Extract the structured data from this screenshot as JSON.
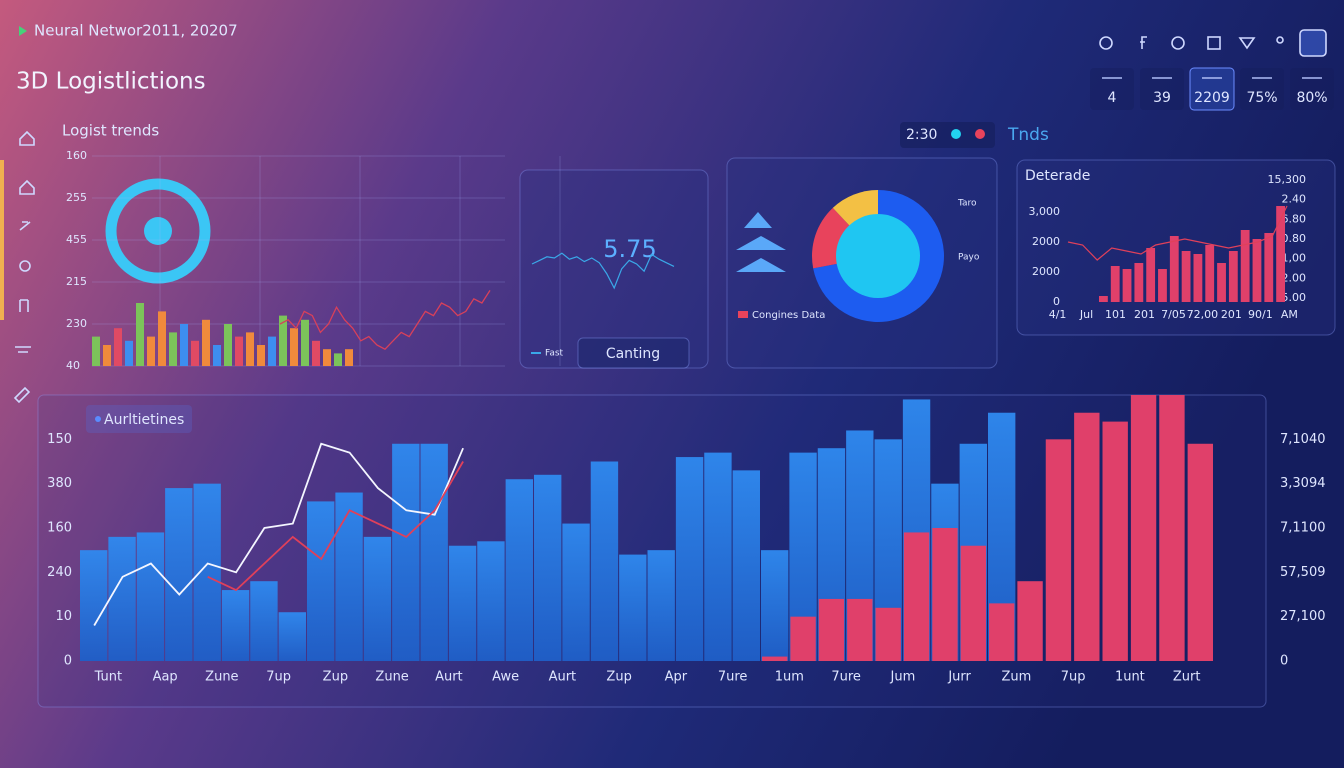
{
  "header": {
    "subtitle": "Neural Networ2011, 20207",
    "title": "3D Logistlictions"
  },
  "kpis": [
    "4",
    "39",
    "2209",
    "75%",
    "80%"
  ],
  "legend": {
    "time": "2:30",
    "label": "Tnds"
  },
  "chart_data": [
    {
      "type": "bar",
      "title": "Logist trends",
      "ylim": [
        0,
        5
      ],
      "yticks": [
        {
          "value": 5,
          "label": "160"
        },
        {
          "value": 4,
          "label": "255"
        },
        {
          "value": 3,
          "label": "455"
        },
        {
          "value": 2,
          "label": "215"
        },
        {
          "value": 1,
          "label": "230"
        },
        {
          "value": 0,
          "label": "40"
        }
      ],
      "values": [
        0.7,
        0.5,
        0.9,
        0.6,
        1.5,
        0.7,
        1.3,
        0.8,
        1.0,
        0.6,
        1.1,
        0.5,
        1.0,
        0.7,
        0.8,
        0.5,
        0.7,
        1.2,
        0.9,
        1.1,
        0.6,
        0.4,
        0.3,
        0.4
      ],
      "colors": [
        "#7cc35a",
        "#f08a3c",
        "#e04a64",
        "#3d8ef0",
        "#7cc35a",
        "#f08a3c",
        "#f08a3c",
        "#7cc35a",
        "#3d8ef0",
        "#e04a64",
        "#f08a3c",
        "#3d8ef0",
        "#7cc35a",
        "#e04a64",
        "#f08a3c",
        "#f08a3c",
        "#3d8ef0",
        "#7cc35a",
        "#f08a3c",
        "#7cc35a",
        "#e04a64",
        "#f08a3c",
        "#7cc35a",
        "#f08a3c"
      ],
      "line_color": "#d8405a",
      "line_values": [
        1.0,
        1.1,
        0.9,
        1.3,
        1.2,
        0.8,
        1.0,
        1.4,
        1.1,
        0.9,
        0.6,
        0.7,
        0.5,
        0.4,
        0.6,
        0.8,
        0.7,
        1.0,
        1.3,
        1.2,
        1.5,
        1.4,
        1.2,
        1.3,
        1.6,
        1.5,
        1.8
      ]
    },
    {
      "type": "line",
      "headline": "5.75",
      "legend": "Fast",
      "button": "Canting",
      "color": "#3aa8e8",
      "values": [
        3.0,
        3.3,
        3.6,
        3.5,
        3.9,
        3.4,
        3.6,
        3.2,
        3.5,
        3.1,
        2.2,
        1.0,
        2.6,
        3.3,
        3.0,
        2.4,
        3.8,
        3.4,
        3.1,
        2.8
      ]
    },
    {
      "type": "pie",
      "legend": "Congines Data",
      "annotations": [
        "Taro",
        "Payo"
      ],
      "values": [
        72,
        16,
        12
      ],
      "colors": [
        "#1d5cf0",
        "#e8435c",
        "#f3c044"
      ]
    },
    {
      "type": "bar",
      "title": "Deterade",
      "xlim": [
        0,
        16
      ],
      "xticks": [
        {
          "value": 0.3,
          "label": "4/1"
        },
        {
          "value": 2.2,
          "label": "Jul"
        },
        {
          "value": 4.1,
          "label": "101"
        },
        {
          "value": 6.0,
          "label": "201"
        },
        {
          "value": 7.9,
          "label": "7/05"
        },
        {
          "value": 9.8,
          "label": "72,00"
        },
        {
          "value": 11.7,
          "label": "201"
        },
        {
          "value": 13.6,
          "label": "90/1"
        },
        {
          "value": 15.5,
          "label": "AM"
        }
      ],
      "ylim": [
        0,
        3
      ],
      "yticks": [
        {
          "value": 3,
          "label": "3,000"
        },
        {
          "value": 2,
          "label": "2000"
        },
        {
          "value": 1,
          "label": "2000"
        },
        0
      ],
      "y2lim": [
        0,
        6
      ],
      "y2ticks": [
        {
          "value": 6,
          "label": "15,300"
        },
        {
          "value": 5,
          "label": "2.40"
        },
        {
          "value": 4,
          "label": "6.80"
        },
        {
          "value": 3,
          "label": "0.80"
        },
        {
          "value": 2,
          "label": "1,00"
        },
        {
          "value": 1,
          "label": "2.00"
        },
        {
          "value": 0,
          "label": "5.00"
        }
      ],
      "color": "#e0406a",
      "values": [
        0.2,
        1.2,
        1.1,
        1.3,
        1.8,
        1.1,
        2.2,
        1.7,
        1.6,
        1.9,
        1.3,
        1.7,
        2.4,
        2.1,
        2.3,
        3.2
      ],
      "line_color": "#e0405a",
      "line_values": [
        2.0,
        1.9,
        1.4,
        1.8,
        1.7,
        1.6,
        1.9,
        2.0,
        2.1,
        2.0,
        1.9,
        1.8,
        1.9,
        2.0,
        2.2,
        3.2
      ]
    },
    {
      "type": "bar",
      "title": "Aurltietines",
      "xlim": [
        0,
        40
      ],
      "xticks": [
        {
          "value": 1,
          "label": "Tunt"
        },
        {
          "value": 3,
          "label": "Aap"
        },
        {
          "value": 5,
          "label": "Zune"
        },
        {
          "value": 7,
          "label": "7up"
        },
        {
          "value": 9,
          "label": "Zup"
        },
        {
          "value": 11,
          "label": "Zune"
        },
        {
          "value": 13,
          "label": "Aurt"
        },
        {
          "value": 15,
          "label": "Awe"
        },
        {
          "value": 17,
          "label": "Aurt"
        },
        {
          "value": 19,
          "label": "Zup"
        },
        {
          "value": 21,
          "label": "Apr"
        },
        {
          "value": 23,
          "label": "7ure"
        },
        {
          "value": 25,
          "label": "1um"
        },
        {
          "value": 27,
          "label": "7ure"
        },
        {
          "value": 29,
          "label": "Jum"
        },
        {
          "value": 31,
          "label": "Jurr"
        },
        {
          "value": 33,
          "label": "Zum"
        },
        {
          "value": 35,
          "label": "7up"
        },
        {
          "value": 37,
          "label": "1unt"
        },
        {
          "value": 39,
          "label": "Zurt"
        }
      ],
      "ylim": [
        0,
        6
      ],
      "yticks": [
        0,
        {
          "value": 1,
          "label": "10"
        },
        {
          "value": 2,
          "label": "240"
        },
        {
          "value": 3,
          "label": "160"
        },
        {
          "value": 4,
          "label": "380"
        },
        {
          "value": 5,
          "label": "150"
        }
      ],
      "y2lim": [
        0,
        6
      ],
      "y2ticks": [
        0,
        {
          "value": 1,
          "label": "27,100"
        },
        {
          "value": 2,
          "label": "57,509"
        },
        {
          "value": 3,
          "label": "7,1100"
        },
        {
          "value": 4,
          "label": "3,3094"
        },
        {
          "value": 5,
          "label": "7,1040"
        }
      ],
      "series": [
        {
          "color": "#2a7fe0",
          "values": [
            2.5,
            2.8,
            2.9,
            3.9,
            4.0,
            1.6,
            1.8,
            1.1,
            3.6,
            3.8,
            2.8,
            4.9,
            4.9,
            2.6,
            2.7,
            4.1,
            4.2,
            3.1,
            4.5,
            2.4,
            2.5,
            4.6,
            4.7,
            4.3,
            2.5,
            4.7,
            4.8,
            5.2,
            5.0,
            5.9,
            4.0,
            4.9,
            5.6,
            null,
            null,
            null,
            null,
            null,
            null,
            null
          ]
        },
        {
          "color": "#e0406a",
          "values": [
            null,
            null,
            null,
            null,
            null,
            null,
            null,
            null,
            null,
            null,
            null,
            null,
            null,
            null,
            null,
            null,
            null,
            null,
            null,
            null,
            null,
            null,
            null,
            null,
            0.1,
            1.0,
            1.4,
            1.4,
            1.2,
            2.9,
            3.0,
            2.6,
            1.3,
            1.8,
            5.0,
            5.6,
            5.4,
            6.0,
            6.0,
            4.9
          ]
        }
      ],
      "lines": [
        {
          "color": "#f4f6ff",
          "values": [
            0.8,
            1.9,
            2.2,
            1.5,
            2.2,
            2.0,
            3.0,
            3.1,
            4.9,
            4.7,
            3.9,
            3.4,
            3.3,
            4.8,
            null,
            null,
            null,
            null,
            null,
            null,
            null,
            null,
            null,
            null,
            null,
            null,
            null,
            null,
            null,
            null,
            null,
            null,
            null,
            null,
            null,
            null,
            null,
            null,
            null,
            null
          ]
        },
        {
          "color": "#e0405a",
          "values": [
            null,
            null,
            null,
            null,
            1.9,
            1.6,
            2.2,
            2.8,
            2.3,
            3.4,
            3.1,
            2.8,
            3.4,
            4.5,
            null,
            null,
            null,
            null,
            null,
            null,
            null,
            null,
            null,
            null,
            null,
            null,
            null,
            null,
            null,
            null,
            null,
            null,
            null,
            null,
            null,
            null,
            null,
            null,
            null,
            null
          ]
        }
      ]
    }
  ]
}
